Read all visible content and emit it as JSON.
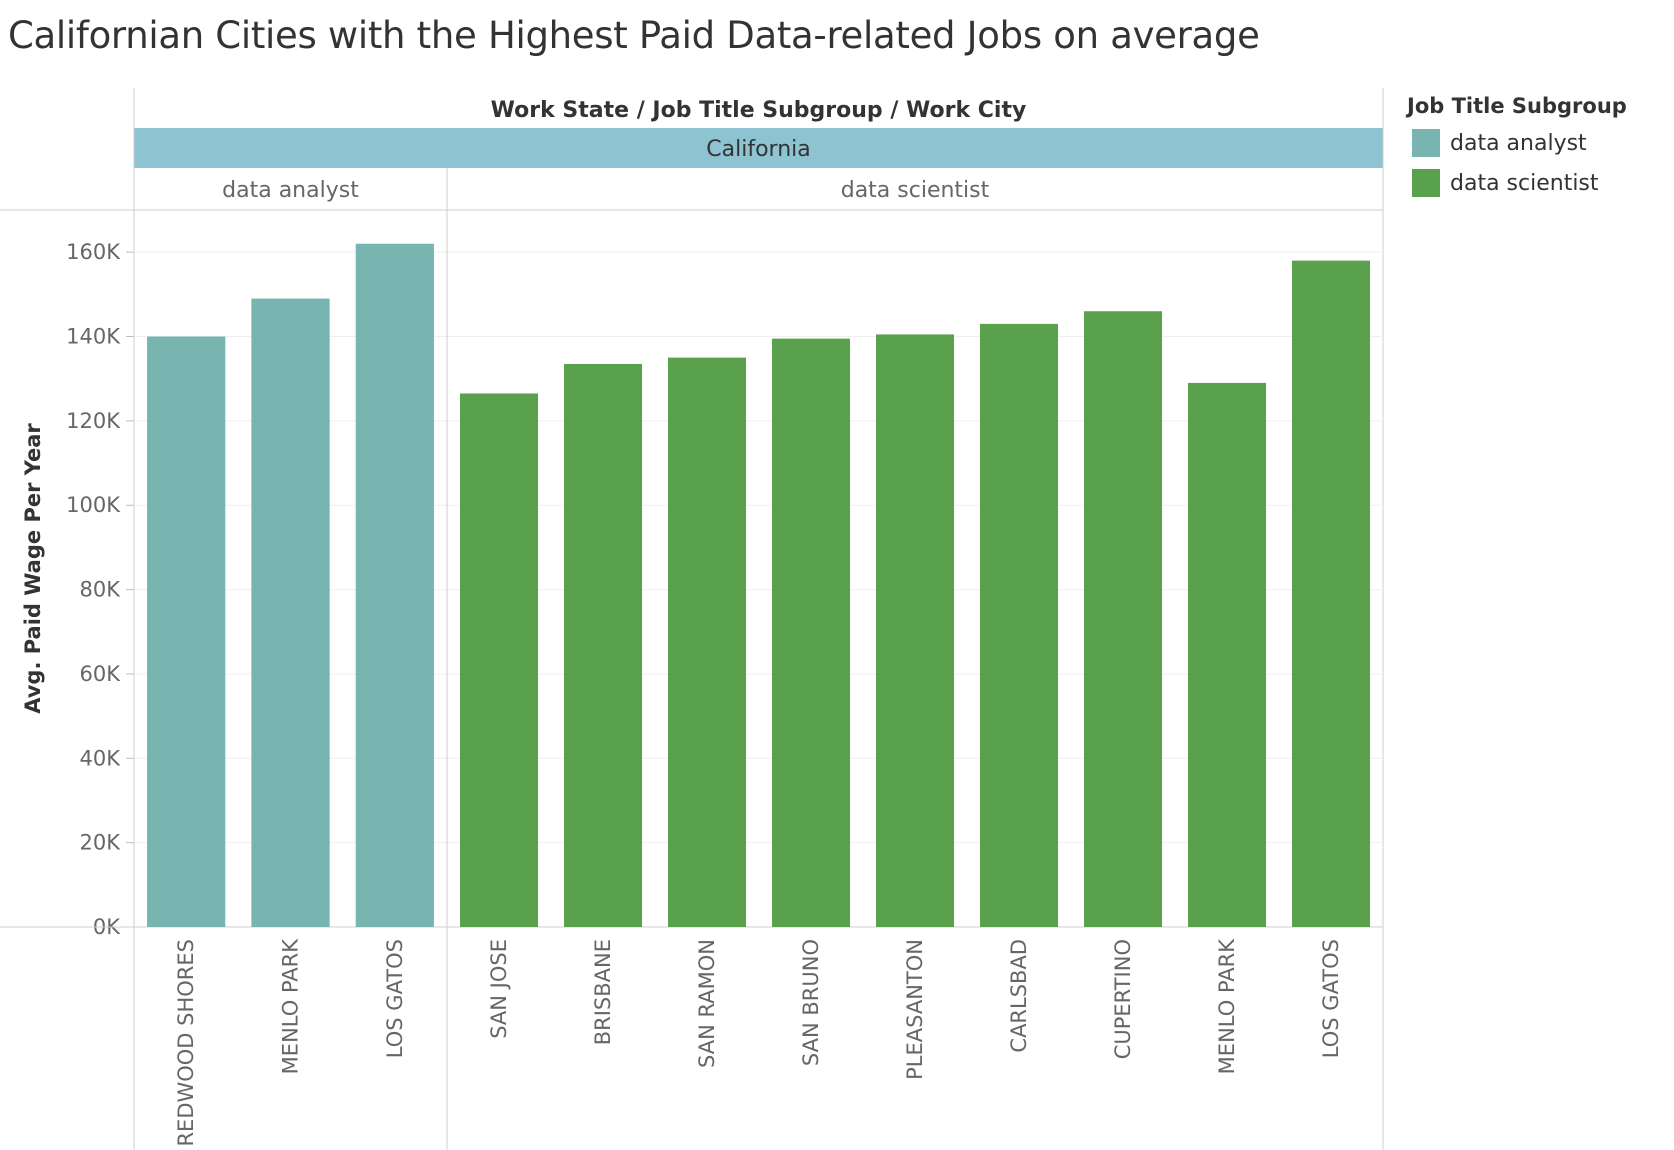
{
  "title": "Californian Cities with the Highest Paid Data-related Jobs on average",
  "header_path": [
    "Work State",
    "Job Title Subgroup",
    "Work City"
  ],
  "header_separator": "/",
  "legend": {
    "title": "Job Title Subgroup",
    "items": [
      {
        "label": "data analyst",
        "color": "#78b5b0"
      },
      {
        "label": "data scientist",
        "color": "#5aa14e"
      }
    ]
  },
  "chart_data": {
    "type": "bar",
    "ylabel": "Avg. Paid Wage Per Year",
    "ylim": [
      0,
      170000
    ],
    "yticks": [
      0,
      20000,
      40000,
      60000,
      80000,
      100000,
      120000,
      140000,
      160000
    ],
    "ytick_labels": [
      "0K",
      "20K",
      "40K",
      "60K",
      "80K",
      "100K",
      "120K",
      "140K",
      "160K"
    ],
    "state": "California",
    "groups": [
      {
        "name": "data analyst",
        "color": "#78b5b0",
        "categories": [
          "REDWOOD SHORES",
          "MENLO PARK",
          "LOS GATOS"
        ],
        "values": [
          140000,
          149000,
          162000
        ]
      },
      {
        "name": "data scientist",
        "color": "#5aa14e",
        "categories": [
          "SAN JOSE",
          "BRISBANE",
          "SAN RAMON",
          "SAN BRUNO",
          "PLEASANTON",
          "CARLSBAD",
          "CUPERTINO",
          "MENLO PARK",
          "LOS GATOS"
        ],
        "values": [
          126500,
          133500,
          135000,
          139500,
          140500,
          143000,
          146000,
          129000,
          158000
        ]
      }
    ]
  }
}
